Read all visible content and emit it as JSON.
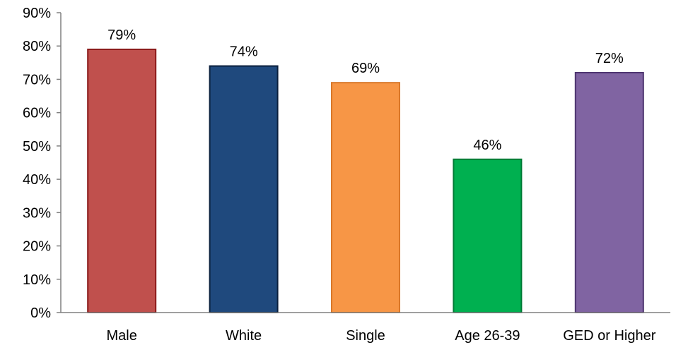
{
  "chart_data": {
    "type": "bar",
    "categories": [
      "Male",
      "White",
      "Single",
      "Age 26-39",
      "GED or Higher"
    ],
    "values": [
      79,
      74,
      69,
      46,
      72
    ],
    "data_labels": [
      "79%",
      "74%",
      "69%",
      "46%",
      "72%"
    ],
    "ylim": [
      0,
      90
    ],
    "yticks": [
      0,
      10,
      20,
      30,
      40,
      50,
      60,
      70,
      80,
      90
    ],
    "ytick_labels": [
      "0%",
      "10%",
      "20%",
      "30%",
      "40%",
      "50%",
      "60%",
      "70%",
      "80%",
      "90%"
    ],
    "grid": false,
    "legend": "none",
    "colors": [
      {
        "fill": "#C0504D",
        "stroke": "#8B1A1A"
      },
      {
        "fill": "#1F497D",
        "stroke": "#0A1F3D"
      },
      {
        "fill": "#F79646",
        "stroke": "#D9782A"
      },
      {
        "fill": "#00B050",
        "stroke": "#007A35"
      },
      {
        "fill": "#8064A2",
        "stroke": "#4E3570"
      }
    ],
    "axis_color": "#808080"
  }
}
